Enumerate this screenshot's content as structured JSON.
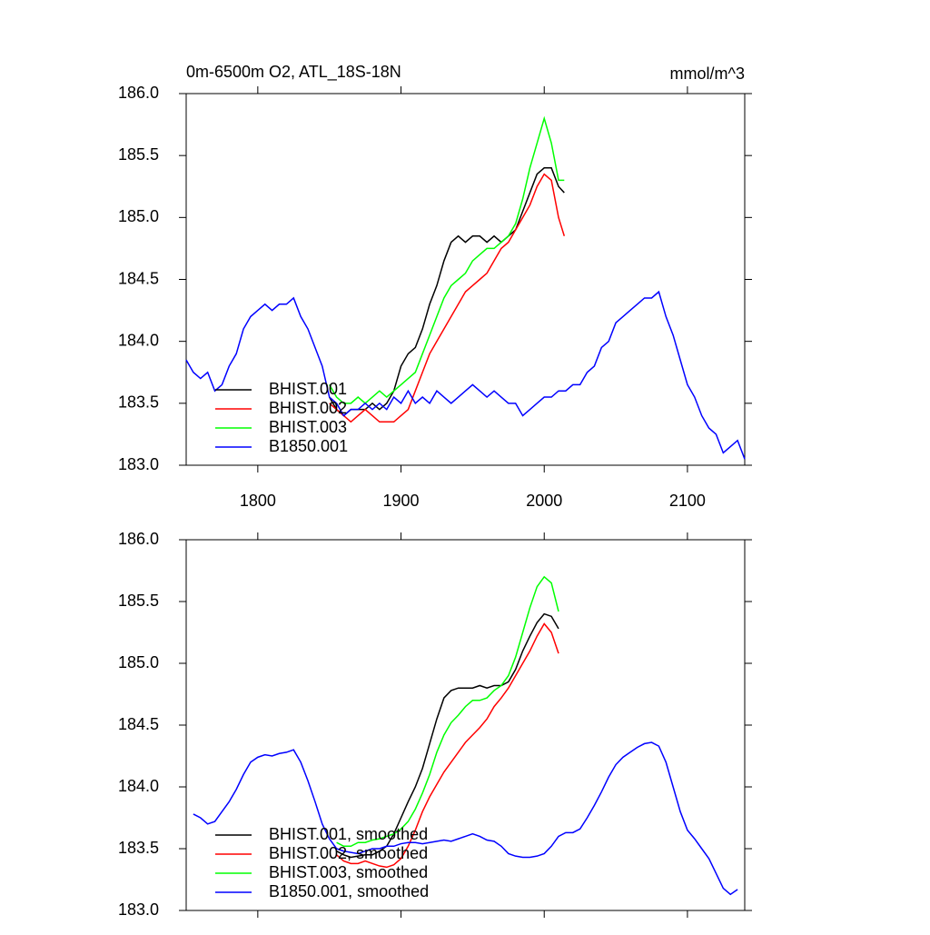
{
  "chart_data": [
    {
      "type": "line",
      "title": "0m-6500m O2, ATL_18S-18N",
      "units": "mmol/m^3",
      "xlim": [
        1750,
        2140
      ],
      "ylim": [
        183,
        186
      ],
      "xticks": [
        1800,
        1900,
        2000,
        2100
      ],
      "show_xtick_labels": true,
      "yticks": [
        {
          "value": 183,
          "label": "183.0"
        },
        {
          "value": 183.5,
          "label": "183.5"
        },
        {
          "value": 184,
          "label": "184.0"
        },
        {
          "value": 184.5,
          "label": "184.5"
        },
        {
          "value": 185,
          "label": "185.0"
        },
        {
          "value": 185.5,
          "label": "185.5"
        },
        {
          "value": 186,
          "label": "186.0"
        }
      ],
      "legend": "lower left",
      "series": [
        {
          "name": "BHIST.001",
          "color": "#000000",
          "x": [
            1850,
            1855,
            1860,
            1865,
            1870,
            1875,
            1880,
            1885,
            1890,
            1895,
            1900,
            1905,
            1910,
            1915,
            1920,
            1925,
            1930,
            1935,
            1940,
            1945,
            1950,
            1955,
            1960,
            1965,
            1970,
            1975,
            1980,
            1985,
            1990,
            1995,
            2000,
            2005,
            2010,
            2014
          ],
          "values": [
            183.55,
            183.45,
            183.4,
            183.45,
            183.45,
            183.45,
            183.5,
            183.45,
            183.5,
            183.6,
            183.8,
            183.9,
            183.95,
            184.1,
            184.3,
            184.45,
            184.65,
            184.8,
            184.85,
            184.8,
            184.85,
            184.85,
            184.8,
            184.85,
            184.8,
            184.85,
            184.9,
            185.05,
            185.2,
            185.35,
            185.4,
            185.4,
            185.25,
            185.2
          ]
        },
        {
          "name": "BHIST.002",
          "color": "#ff0000",
          "x": [
            1850,
            1855,
            1860,
            1865,
            1870,
            1875,
            1880,
            1885,
            1890,
            1895,
            1900,
            1905,
            1910,
            1915,
            1920,
            1925,
            1930,
            1935,
            1940,
            1945,
            1950,
            1955,
            1960,
            1965,
            1970,
            1975,
            1980,
            1985,
            1990,
            1995,
            2000,
            2005,
            2010,
            2014
          ],
          "values": [
            183.5,
            183.45,
            183.4,
            183.35,
            183.4,
            183.45,
            183.4,
            183.35,
            183.35,
            183.35,
            183.4,
            183.45,
            183.6,
            183.75,
            183.9,
            184.0,
            184.1,
            184.2,
            184.3,
            184.4,
            184.45,
            184.5,
            184.55,
            184.65,
            184.75,
            184.8,
            184.9,
            185.0,
            185.1,
            185.25,
            185.35,
            185.3,
            185.0,
            184.85
          ]
        },
        {
          "name": "BHIST.003",
          "color": "#00ff00",
          "x": [
            1850,
            1855,
            1860,
            1865,
            1870,
            1875,
            1880,
            1885,
            1890,
            1895,
            1900,
            1905,
            1910,
            1915,
            1920,
            1925,
            1930,
            1935,
            1940,
            1945,
            1950,
            1955,
            1960,
            1965,
            1970,
            1975,
            1980,
            1985,
            1990,
            1995,
            2000,
            2005,
            2010,
            2014
          ],
          "values": [
            183.65,
            183.55,
            183.5,
            183.5,
            183.55,
            183.5,
            183.55,
            183.6,
            183.55,
            183.6,
            183.65,
            183.7,
            183.75,
            183.9,
            184.05,
            184.2,
            184.35,
            184.45,
            184.5,
            184.55,
            184.65,
            184.7,
            184.75,
            184.75,
            184.8,
            184.85,
            184.95,
            185.15,
            185.4,
            185.6,
            185.8,
            185.6,
            185.3,
            185.3
          ]
        },
        {
          "name": "B1850.001",
          "color": "#0000ff",
          "x": [
            1750,
            1755,
            1760,
            1765,
            1770,
            1775,
            1780,
            1785,
            1790,
            1795,
            1800,
            1805,
            1810,
            1815,
            1820,
            1825,
            1830,
            1835,
            1840,
            1845,
            1850,
            1855,
            1860,
            1865,
            1870,
            1875,
            1880,
            1885,
            1890,
            1895,
            1900,
            1905,
            1910,
            1915,
            1920,
            1925,
            1930,
            1935,
            1940,
            1945,
            1950,
            1955,
            1960,
            1965,
            1970,
            1975,
            1980,
            1985,
            1990,
            1995,
            2000,
            2005,
            2010,
            2015,
            2020,
            2025,
            2030,
            2035,
            2040,
            2045,
            2050,
            2055,
            2060,
            2065,
            2070,
            2075,
            2080,
            2085,
            2090,
            2095,
            2100,
            2105,
            2110,
            2115,
            2120,
            2125,
            2130,
            2135,
            2140
          ],
          "values": [
            183.85,
            183.75,
            183.7,
            183.75,
            183.6,
            183.65,
            183.8,
            183.9,
            184.1,
            184.2,
            184.25,
            184.3,
            184.25,
            184.3,
            184.3,
            184.35,
            184.2,
            184.1,
            183.95,
            183.8,
            183.55,
            183.5,
            183.4,
            183.45,
            183.45,
            183.5,
            183.45,
            183.5,
            183.45,
            183.55,
            183.5,
            183.6,
            183.5,
            183.55,
            183.5,
            183.6,
            183.55,
            183.5,
            183.55,
            183.6,
            183.65,
            183.6,
            183.55,
            183.6,
            183.55,
            183.5,
            183.5,
            183.4,
            183.45,
            183.5,
            183.55,
            183.55,
            183.6,
            183.6,
            183.65,
            183.65,
            183.75,
            183.8,
            183.95,
            184.0,
            184.15,
            184.2,
            184.25,
            184.3,
            184.35,
            184.35,
            184.4,
            184.2,
            184.05,
            183.85,
            183.65,
            183.55,
            183.4,
            183.3,
            183.25,
            183.1,
            183.15,
            183.2,
            183.05
          ]
        }
      ]
    },
    {
      "type": "line",
      "xlim": [
        1750,
        2140
      ],
      "ylim": [
        183,
        186
      ],
      "xticks": [
        1800,
        1900,
        2000,
        2100
      ],
      "show_xtick_labels": false,
      "yticks": [
        {
          "value": 183,
          "label": "183.0"
        },
        {
          "value": 183.5,
          "label": "183.5"
        },
        {
          "value": 184,
          "label": "184.0"
        },
        {
          "value": 184.5,
          "label": "184.5"
        },
        {
          "value": 185,
          "label": "185.0"
        },
        {
          "value": 185.5,
          "label": "185.5"
        },
        {
          "value": 186,
          "label": "186.0"
        }
      ],
      "legend": "lower left",
      "series": [
        {
          "name": "BHIST.001, smoothed",
          "color": "#000000",
          "x": [
            1855,
            1860,
            1865,
            1870,
            1875,
            1880,
            1885,
            1890,
            1895,
            1900,
            1905,
            1910,
            1915,
            1920,
            1925,
            1930,
            1935,
            1940,
            1945,
            1950,
            1955,
            1960,
            1965,
            1970,
            1975,
            1980,
            1985,
            1990,
            1995,
            2000,
            2005,
            2010
          ],
          "values": [
            183.48,
            183.45,
            183.43,
            183.44,
            183.45,
            183.45,
            183.48,
            183.52,
            183.62,
            183.75,
            183.88,
            184.0,
            184.15,
            184.35,
            184.55,
            184.72,
            184.78,
            184.8,
            184.8,
            184.8,
            184.82,
            184.8,
            184.82,
            184.82,
            184.85,
            184.95,
            185.1,
            185.22,
            185.33,
            185.4,
            185.38,
            185.28
          ]
        },
        {
          "name": "BHIST.002, smoothed",
          "color": "#ff0000",
          "x": [
            1855,
            1860,
            1865,
            1870,
            1875,
            1880,
            1885,
            1890,
            1895,
            1900,
            1905,
            1910,
            1915,
            1920,
            1925,
            1930,
            1935,
            1940,
            1945,
            1950,
            1955,
            1960,
            1965,
            1970,
            1975,
            1980,
            1985,
            1990,
            1995,
            2000,
            2005,
            2010
          ],
          "values": [
            183.45,
            183.4,
            183.38,
            183.38,
            183.4,
            183.38,
            183.36,
            183.35,
            183.37,
            183.42,
            183.52,
            183.65,
            183.8,
            183.92,
            184.02,
            184.12,
            184.2,
            184.28,
            184.36,
            184.42,
            184.48,
            184.55,
            184.65,
            184.72,
            184.8,
            184.9,
            185.0,
            185.1,
            185.22,
            185.32,
            185.25,
            185.08
          ]
        },
        {
          "name": "BHIST.003, smoothed",
          "color": "#00ff00",
          "x": [
            1855,
            1860,
            1865,
            1870,
            1875,
            1880,
            1885,
            1890,
            1895,
            1900,
            1905,
            1910,
            1915,
            1920,
            1925,
            1930,
            1935,
            1940,
            1945,
            1950,
            1955,
            1960,
            1965,
            1970,
            1975,
            1980,
            1985,
            1990,
            1995,
            2000,
            2005,
            2010
          ],
          "values": [
            183.55,
            183.52,
            183.52,
            183.55,
            183.55,
            183.57,
            183.58,
            183.6,
            183.62,
            183.66,
            183.72,
            183.82,
            183.95,
            184.1,
            184.28,
            184.42,
            184.52,
            184.58,
            184.65,
            184.7,
            184.7,
            184.72,
            184.78,
            184.82,
            184.9,
            185.05,
            185.25,
            185.45,
            185.62,
            185.7,
            185.65,
            185.42
          ]
        },
        {
          "name": "B1850.001, smoothed",
          "color": "#0000ff",
          "x": [
            1755,
            1760,
            1765,
            1770,
            1775,
            1780,
            1785,
            1790,
            1795,
            1800,
            1805,
            1810,
            1815,
            1820,
            1825,
            1830,
            1835,
            1840,
            1845,
            1850,
            1855,
            1860,
            1865,
            1870,
            1875,
            1880,
            1885,
            1890,
            1895,
            1900,
            1905,
            1910,
            1915,
            1920,
            1925,
            1930,
            1935,
            1940,
            1945,
            1950,
            1955,
            1960,
            1965,
            1970,
            1975,
            1980,
            1985,
            1990,
            1995,
            2000,
            2005,
            2010,
            2015,
            2020,
            2025,
            2030,
            2035,
            2040,
            2045,
            2050,
            2055,
            2060,
            2065,
            2070,
            2075,
            2080,
            2085,
            2090,
            2095,
            2100,
            2105,
            2110,
            2115,
            2120,
            2125,
            2130,
            2135
          ],
          "values": [
            183.78,
            183.75,
            183.7,
            183.72,
            183.8,
            183.88,
            183.98,
            184.1,
            184.2,
            184.24,
            184.26,
            184.25,
            184.27,
            184.28,
            184.3,
            184.2,
            184.05,
            183.88,
            183.7,
            183.58,
            183.5,
            183.48,
            183.47,
            183.46,
            183.48,
            183.5,
            183.5,
            183.52,
            183.52,
            183.54,
            183.55,
            183.55,
            183.54,
            183.55,
            183.56,
            183.57,
            183.56,
            183.58,
            183.6,
            183.62,
            183.6,
            183.57,
            183.56,
            183.52,
            183.46,
            183.44,
            183.43,
            183.43,
            183.44,
            183.46,
            183.52,
            183.6,
            183.63,
            183.63,
            183.66,
            183.75,
            183.85,
            183.96,
            184.08,
            184.18,
            184.24,
            184.28,
            184.32,
            184.35,
            184.36,
            184.33,
            184.2,
            184.0,
            183.8,
            183.65,
            183.58,
            183.5,
            183.42,
            183.3,
            183.18,
            183.13,
            183.17
          ]
        }
      ]
    }
  ]
}
